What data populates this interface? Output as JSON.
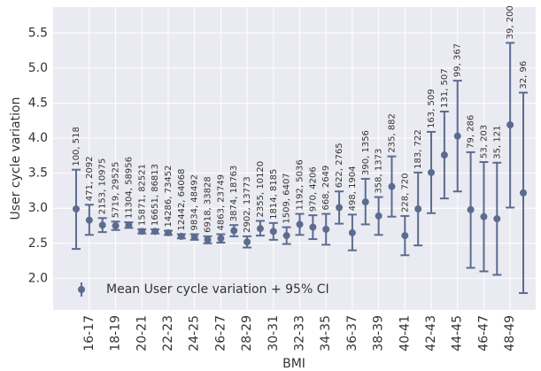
{
  "chart_data": {
    "type": "errorbar",
    "xlabel": "BMI",
    "ylabel": "User cycle variation",
    "legend": "Mean User cycle variation + 95% CI",
    "legend_corner": "lower left",
    "color": "#5b6c8f",
    "grid": true,
    "categories": [
      null,
      "16-17",
      null,
      "18-19",
      null,
      "20-21",
      null,
      "22-23",
      null,
      "24-25",
      null,
      "26-27",
      null,
      "28-29",
      null,
      "30-31",
      null,
      "32-33",
      null,
      "34-35",
      null,
      "36-37",
      null,
      "38-39",
      null,
      "40-41",
      null,
      "42-43",
      null,
      "44-45",
      null,
      "46-47",
      null,
      "48-49",
      null
    ],
    "values": [
      2.99,
      2.83,
      2.76,
      2.75,
      2.76,
      2.67,
      2.67,
      2.65,
      2.6,
      2.59,
      2.55,
      2.57,
      2.68,
      2.52,
      2.71,
      2.67,
      2.61,
      2.77,
      2.73,
      2.7,
      3.01,
      2.65,
      3.09,
      2.89,
      3.31,
      2.61,
      2.99,
      3.51,
      3.76,
      4.03,
      2.98,
      2.88,
      2.85,
      4.19,
      3.22
    ],
    "lower": [
      2.42,
      2.62,
      2.66,
      2.69,
      2.72,
      2.64,
      2.64,
      2.62,
      2.57,
      2.55,
      2.5,
      2.51,
      2.6,
      2.44,
      2.61,
      2.55,
      2.49,
      2.62,
      2.56,
      2.48,
      2.78,
      2.4,
      2.77,
      2.62,
      2.88,
      2.33,
      2.47,
      2.93,
      3.14,
      3.24,
      2.15,
      2.1,
      2.05,
      3.01,
      1.79
    ],
    "upper": [
      3.55,
      3.05,
      2.86,
      2.81,
      2.8,
      2.7,
      2.7,
      2.68,
      2.63,
      2.63,
      2.6,
      2.63,
      2.76,
      2.6,
      2.82,
      2.79,
      2.73,
      2.92,
      2.9,
      2.92,
      3.24,
      2.91,
      3.42,
      3.16,
      3.74,
      2.89,
      3.51,
      4.09,
      4.38,
      4.82,
      3.8,
      3.66,
      3.65,
      5.36,
      4.65
    ],
    "annotations": [
      "100, 518",
      "471, 2092",
      "2153, 10975",
      "5719, 29525",
      "11304, 58956",
      "15871, 82521",
      "16651, 86813",
      "14286, 73452",
      "12442, 64068",
      "9834, 48492",
      "6918, 33828",
      "4863, 23749",
      "3874, 18763",
      "2902, 13773",
      "2355, 10120",
      "1814, 8185",
      "1509, 6407",
      "1192, 5036",
      "970, 4206",
      "668, 2649",
      "622, 2765",
      "498, 1904",
      "390, 1356",
      "358, 1373",
      "235, 882",
      "228, 720",
      "183, 722",
      "163, 509",
      "131, 507",
      "99, 367",
      "79, 286",
      "53, 203",
      "35, 121",
      "39, 200",
      "32, 96"
    ],
    "ylim": [
      1.55,
      5.87
    ],
    "yticks": [
      {
        "value": 2,
        "label": "2.0"
      },
      {
        "value": 2.5,
        "label": "2.5"
      },
      {
        "value": 3,
        "label": "3.0"
      },
      {
        "value": 3.5,
        "label": "3.5"
      },
      {
        "value": 4,
        "label": "4.0"
      },
      {
        "value": 4.5,
        "label": "4.5"
      },
      {
        "value": 5,
        "label": "5.0"
      },
      {
        "value": 5.5,
        "label": "5.5"
      }
    ]
  }
}
